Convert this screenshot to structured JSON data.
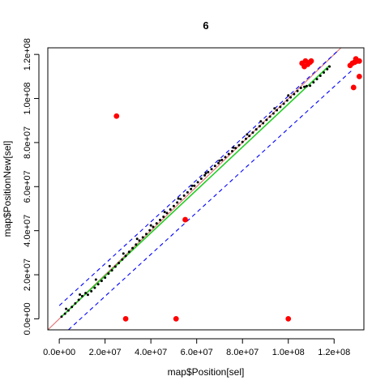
{
  "chart_data": {
    "type": "scatter",
    "title": "6",
    "xlabel": "map$Position[sel]",
    "ylabel": "map$PositionNew[sel]",
    "xlim": [
      -5000000,
      133000000
    ],
    "ylim": [
      -5000000,
      123000000
    ],
    "x_ticks": [
      {
        "value": 0,
        "label": "0.0e+00"
      },
      {
        "value": 20000000,
        "label": "2.0e+07"
      },
      {
        "value": 40000000,
        "label": "4.0e+07"
      },
      {
        "value": 60000000,
        "label": "6.0e+07"
      },
      {
        "value": 80000000,
        "label": "8.0e+07"
      },
      {
        "value": 100000000,
        "label": "1.0e+08"
      },
      {
        "value": 120000000,
        "label": "1.2e+08"
      }
    ],
    "y_ticks": [
      {
        "value": 0,
        "label": "0.0e+00"
      },
      {
        "value": 20000000,
        "label": "2.0e+07"
      },
      {
        "value": 40000000,
        "label": "4.0e+07"
      },
      {
        "value": 60000000,
        "label": "6.0e+07"
      },
      {
        "value": 80000000,
        "label": "8.0e+07"
      },
      {
        "value": 100000000,
        "label": "1.0e+08"
      },
      {
        "value": 120000000,
        "label": "1.2e+08"
      }
    ],
    "grid": false,
    "reference_lines": [
      {
        "kind": "identity",
        "color": "#e07070",
        "slope": 1,
        "intercept": 0
      },
      {
        "kind": "fit",
        "color": "#22cc22",
        "x": [
          1000000,
          118000000
        ],
        "y": [
          1000000,
          115000000
        ]
      },
      {
        "kind": "upper-bound",
        "color": "#0000ff",
        "dashed": true,
        "x": [
          0,
          122000000
        ],
        "y": [
          6000000,
          122000000
        ]
      },
      {
        "kind": "lower-bound",
        "color": "#0000ff",
        "dashed": true,
        "x": [
          4000000,
          128000000
        ],
        "y": [
          -5000000,
          113000000
        ]
      }
    ],
    "series": [
      {
        "color": "#000000",
        "marker": "small",
        "points": [
          [
            1000000,
            1000000
          ],
          [
            2500000,
            2300000
          ],
          [
            4000000,
            3800000
          ],
          [
            5500000,
            5400000
          ],
          [
            7000000,
            7000000
          ],
          [
            8500000,
            8600000
          ],
          [
            10000000,
            10300000
          ],
          [
            11500000,
            11700000
          ],
          [
            12500000,
            10900000
          ],
          [
            14000000,
            12500000
          ],
          [
            15500000,
            14100000
          ],
          [
            17000000,
            15700000
          ],
          [
            18500000,
            17200000
          ],
          [
            20000000,
            18700000
          ],
          [
            21500000,
            20500000
          ],
          [
            23000000,
            22000000
          ],
          [
            24500000,
            23700000
          ],
          [
            26000000,
            25300000
          ],
          [
            27500000,
            26900000
          ],
          [
            29000000,
            28500000
          ],
          [
            30500000,
            30400000
          ],
          [
            32000000,
            32100000
          ],
          [
            33500000,
            33700000
          ],
          [
            35000000,
            35500000
          ],
          [
            36500000,
            37000000
          ],
          [
            38000000,
            38500000
          ],
          [
            39500000,
            40200000
          ],
          [
            41000000,
            41700000
          ],
          [
            42500000,
            43300000
          ],
          [
            44000000,
            44900000
          ],
          [
            45500000,
            46300000
          ],
          [
            47000000,
            48000000
          ],
          [
            48500000,
            49600000
          ],
          [
            50000000,
            51200000
          ],
          [
            51500000,
            52800000
          ],
          [
            53000000,
            54300000
          ],
          [
            54500000,
            55900000
          ],
          [
            56000000,
            57400000
          ],
          [
            57500000,
            58900000
          ],
          [
            59000000,
            60400000
          ],
          [
            60500000,
            62000000
          ],
          [
            62000000,
            63600000
          ],
          [
            63500000,
            65100000
          ],
          [
            65000000,
            66600000
          ],
          [
            66500000,
            67900000
          ],
          [
            68000000,
            69400000
          ],
          [
            69500000,
            70700000
          ],
          [
            71000000,
            72100000
          ],
          [
            72500000,
            73400000
          ],
          [
            74000000,
            74800000
          ],
          [
            75500000,
            76100000
          ],
          [
            77000000,
            77500000
          ],
          [
            78500000,
            78800000
          ],
          [
            80000000,
            80300000
          ],
          [
            81500000,
            81700000
          ],
          [
            83000000,
            83000000
          ],
          [
            84500000,
            84500000
          ],
          [
            86000000,
            86000000
          ],
          [
            87500000,
            87400000
          ],
          [
            89000000,
            88800000
          ],
          [
            90500000,
            90300000
          ],
          [
            92000000,
            91800000
          ],
          [
            93500000,
            93200000
          ],
          [
            95000000,
            94700000
          ],
          [
            96500000,
            96200000
          ],
          [
            98000000,
            97600000
          ],
          [
            99500000,
            99100000
          ],
          [
            101000000,
            100500000
          ],
          [
            102500000,
            102000000
          ],
          [
            104000000,
            103400000
          ],
          [
            105500000,
            104800000
          ],
          [
            107000000,
            105300000
          ],
          [
            108000000,
            105600000
          ],
          [
            109500000,
            105800000
          ],
          [
            111000000,
            107300000
          ],
          [
            112500000,
            108800000
          ],
          [
            114000000,
            110300000
          ],
          [
            115500000,
            111800000
          ],
          [
            117000000,
            113300000
          ],
          [
            118000000,
            114500000
          ],
          [
            3000000,
            4500000
          ],
          [
            9000000,
            11000000
          ],
          [
            16000000,
            17800000
          ],
          [
            22000000,
            23900000
          ],
          [
            28000000,
            29600000
          ],
          [
            34000000,
            36300000
          ],
          [
            40000000,
            42400000
          ],
          [
            46000000,
            48500000
          ],
          [
            52000000,
            54600000
          ],
          [
            58000000,
            60400000
          ],
          [
            64000000,
            66100000
          ],
          [
            70000000,
            71800000
          ],
          [
            76000000,
            77700000
          ],
          [
            82000000,
            83700000
          ],
          [
            88000000,
            89600000
          ],
          [
            94000000,
            95500000
          ],
          [
            100000000,
            101400000
          ]
        ]
      },
      {
        "color": "#ff0000",
        "marker": "large",
        "points": [
          [
            25000000,
            92000000
          ],
          [
            55000000,
            45000000
          ],
          [
            29000000,
            0
          ],
          [
            51000000,
            0
          ],
          [
            100000000,
            0
          ],
          [
            106000000,
            116000000
          ],
          [
            107500000,
            117000000
          ],
          [
            108500000,
            115500000
          ],
          [
            109500000,
            116500000
          ],
          [
            107000000,
            114500000
          ],
          [
            110000000,
            117000000
          ],
          [
            127000000,
            115000000
          ],
          [
            128000000,
            116000000
          ],
          [
            129000000,
            116500000
          ],
          [
            130000000,
            117000000
          ],
          [
            129500000,
            118000000
          ],
          [
            131000000,
            117000000
          ],
          [
            128500000,
            105000000
          ],
          [
            131000000,
            110000000
          ]
        ]
      }
    ]
  }
}
